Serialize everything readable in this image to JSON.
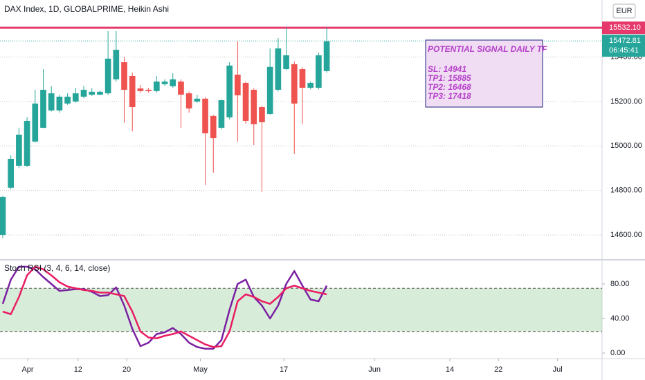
{
  "chart_data": [
    {
      "type": "candlestick",
      "title": "DAX Index, 1D, GLOBALPRIME, Heikin Ashi",
      "open": [
        14600,
        14812,
        14911,
        14911,
        15020,
        15082,
        15160,
        15160,
        15191,
        15200,
        15222,
        15231,
        15231,
        15237,
        15300,
        15377,
        15315,
        15259,
        15253,
        15247,
        15278,
        15269,
        15290,
        15237,
        15200,
        15213,
        15135,
        15082,
        15129,
        15321,
        15284,
        15253,
        15175,
        15144,
        15253,
        15346,
        15368,
        15346,
        15262,
        15262,
        15337
      ],
      "high": [
        14775,
        14958,
        15082,
        15130,
        15253,
        15346,
        15269,
        15230,
        15237,
        15262,
        15270,
        15260,
        15250,
        15517,
        15517,
        15400,
        15330,
        15275,
        15262,
        15315,
        15300,
        15327,
        15300,
        15245,
        15230,
        15220,
        15140,
        15210,
        15377,
        15471,
        15290,
        15260,
        15180,
        15439,
        15486,
        15533,
        15380,
        15355,
        15290,
        15420,
        15533
      ],
      "low": [
        14585,
        14805,
        14900,
        14905,
        15015,
        15080,
        15155,
        15150,
        15185,
        15195,
        15215,
        15225,
        15228,
        15230,
        15290,
        15104,
        15066,
        15240,
        15240,
        15240,
        15270,
        15262,
        15082,
        15150,
        15195,
        14824,
        14880,
        15075,
        15120,
        15020,
        15100,
        15004,
        14793,
        15140,
        15245,
        15340,
        14964,
        15098,
        15255,
        15255,
        15330
      ],
      "close": [
        14771,
        14942,
        15051,
        15113,
        15191,
        15253,
        15237,
        15222,
        15222,
        15237,
        15253,
        15244,
        15244,
        15393,
        15433,
        15253,
        15175,
        15247,
        15247,
        15290,
        15290,
        15300,
        15231,
        15169,
        15213,
        15057,
        15035,
        15206,
        15362,
        15228,
        15113,
        15098,
        15107,
        15356,
        15439,
        15408,
        15191,
        15262,
        15284,
        15408,
        15471
      ],
      "up_color": "#26a69a",
      "down_color": "#ef5350",
      "ylim": [
        14491,
        15657
      ],
      "yticks": [
        {
          "value": 14600,
          "label": "14600.00"
        },
        {
          "value": 14800,
          "label": "14800.00"
        },
        {
          "value": 15000,
          "label": "15000.00"
        },
        {
          "value": 15200,
          "label": "15200.00"
        },
        {
          "value": 15400,
          "label": "15400.00"
        }
      ],
      "hline": {
        "value": 15532.1,
        "label": "15532.10",
        "color": "#e5386b"
      },
      "last_price": 15472.81,
      "countdown": "06:45:41",
      "currency": "EUR",
      "annotation": {
        "title": "POTENTIAL SIGNAL DAILY TF",
        "lines": [
          "SL: 14941",
          "TP1: 15885",
          "TP2: 16468",
          "TP3: 17418"
        ]
      }
    },
    {
      "type": "line",
      "title": "Stoch RSI (3, 4, 6, 14, close)",
      "series": [
        {
          "color": "#7b1fa2",
          "values": [
            57,
            85,
            100,
            100,
            97,
            88,
            80,
            72,
            73,
            74,
            74,
            71,
            66,
            67,
            76,
            55,
            28,
            8,
            12,
            22,
            24,
            29,
            22,
            12,
            7,
            5,
            5,
            15,
            50,
            80,
            85,
            65,
            55,
            40,
            55,
            80,
            95,
            78,
            62,
            60,
            78
          ]
        },
        {
          "color": "#e91e63",
          "values": [
            48,
            45,
            65,
            90,
            100,
            97,
            90,
            82,
            77,
            75,
            73,
            72,
            70,
            70,
            68,
            66,
            48,
            25,
            18,
            17,
            20,
            22,
            25,
            20,
            15,
            10,
            7,
            8,
            25,
            60,
            68,
            65,
            60,
            57,
            65,
            75,
            78,
            75,
            72,
            70,
            68
          ]
        }
      ],
      "ylim": [
        -5.6,
        106.4
      ],
      "yticks": [
        {
          "value": 0,
          "label": "0.00"
        },
        {
          "value": 40,
          "label": "40.00"
        },
        {
          "value": 80,
          "label": "80.00"
        }
      ],
      "upper_band": 75,
      "lower_band": 25,
      "xlim": [
        -0.34,
        74
      ],
      "xticks": [
        {
          "value": 3.08,
          "label": "Apr"
        },
        {
          "value": 9.3,
          "label": "12"
        },
        {
          "value": 15.3,
          "label": "20"
        },
        {
          "value": 24.4,
          "label": "May"
        },
        {
          "value": 34.7,
          "label": "17"
        },
        {
          "value": 45.9,
          "label": "Jun"
        },
        {
          "value": 55.2,
          "label": "14"
        },
        {
          "value": 61.2,
          "label": "22"
        },
        {
          "value": 68.5,
          "label": "Jul"
        }
      ]
    }
  ]
}
